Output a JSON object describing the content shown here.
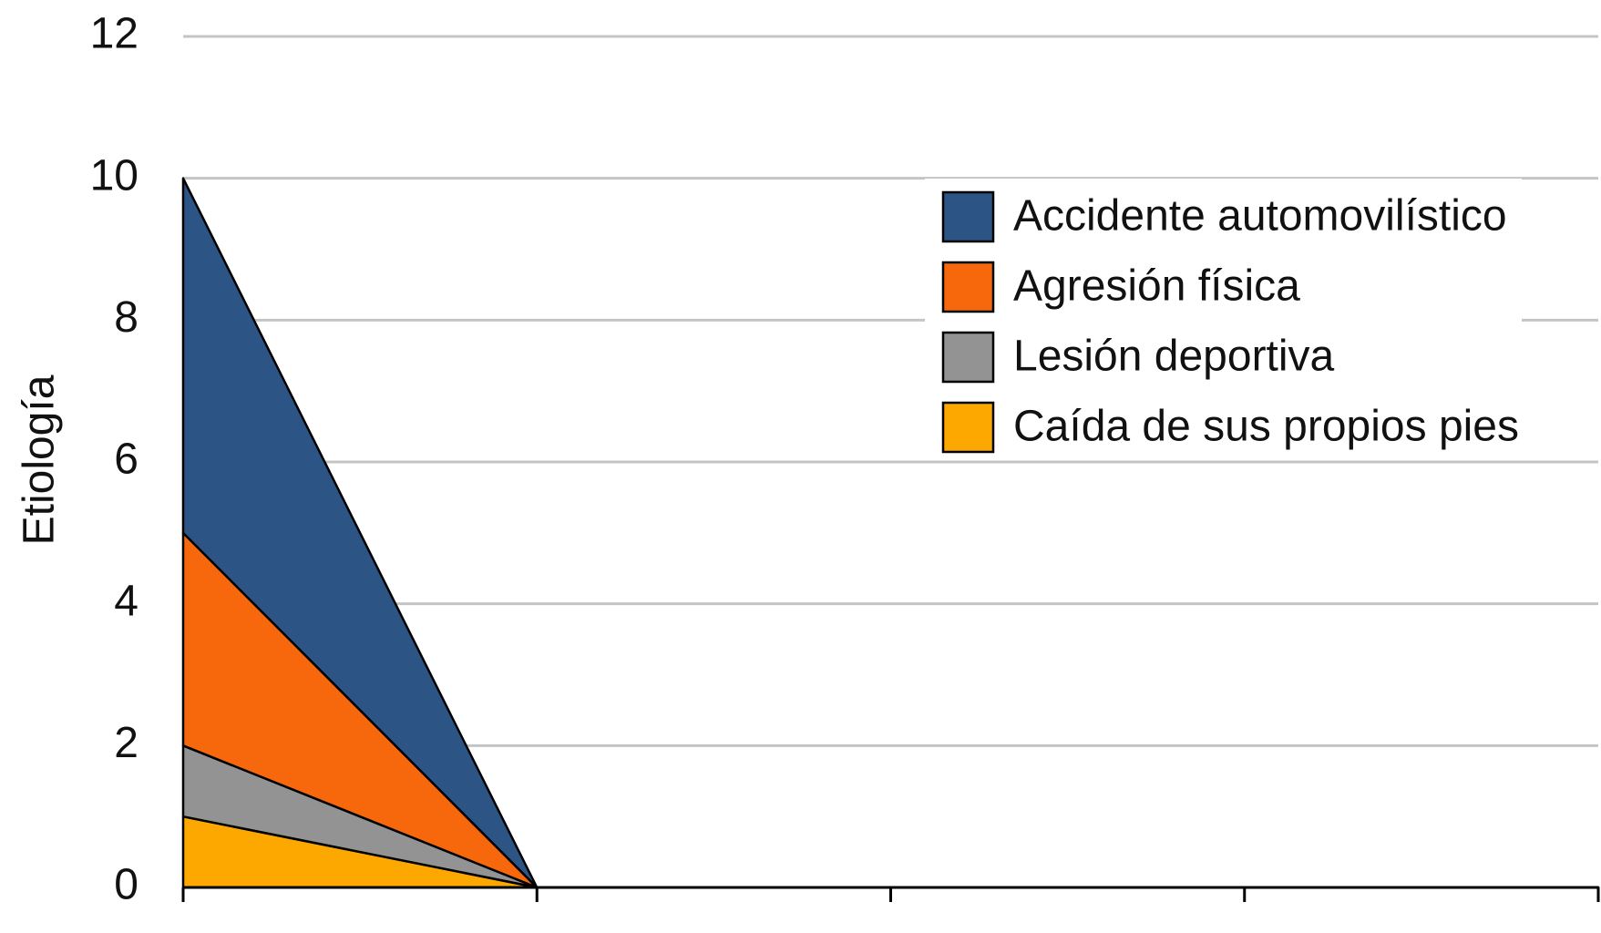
{
  "chart_data": {
    "type": "stacked_area",
    "y_label": "Etiología",
    "categories": [
      null,
      null,
      null,
      null,
      null
    ],
    "series": [
      {
        "name": "Caída de sus propios pies",
        "color": "#fca800",
        "values": [
          1,
          0,
          0,
          0,
          0
        ]
      },
      {
        "name": "Lesión deportiva",
        "color": "#939393",
        "values": [
          1,
          0,
          0,
          0,
          0
        ]
      },
      {
        "name": "Agresión física",
        "color": "#f7680c",
        "values": [
          3,
          0,
          0,
          0,
          0
        ]
      },
      {
        "name": "Accidente automovilístico",
        "color": "#2c5586",
        "values": [
          5,
          0,
          0,
          0,
          0
        ]
      }
    ],
    "ylim": [
      0,
      12
    ],
    "yticks": [
      0,
      2,
      4,
      6,
      8,
      10,
      12
    ],
    "grid": true,
    "legend": "upper right"
  }
}
